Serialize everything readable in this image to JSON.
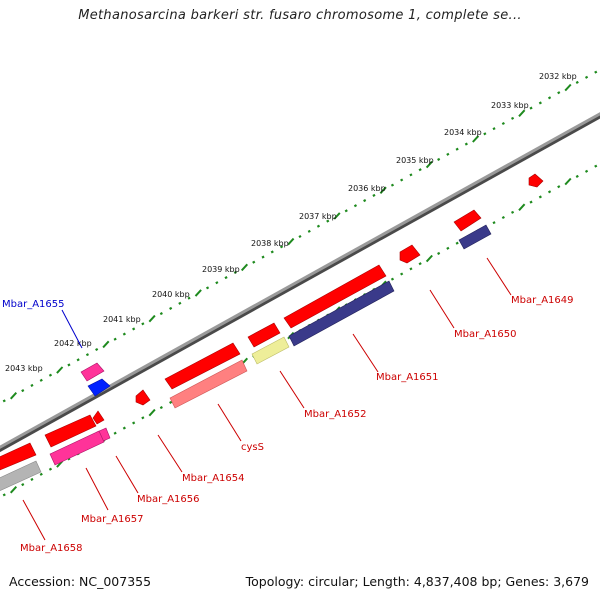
{
  "title": "Methanosarcina barkeri str. fusaro chromosome 1, complete se...",
  "footer": {
    "accession": "Accession: NC_007355",
    "topology": "Topology: circular; Length: 4,837,408 bp; Genes: 3,679"
  },
  "colors": {
    "backbone": "#7a7a7a",
    "tick_dots": "#1e8a1e",
    "label_red": "#cc0000",
    "label_blue": "#0000cc",
    "gene_red": "#ff0000",
    "gene_pink": "#ff3399",
    "gene_navy": "#3a3a8a",
    "gene_salmon": "#ff8080",
    "gene_yellow": "#eeee99",
    "gene_gray": "#b4b4b4",
    "gene_blue": "#0022ff"
  },
  "ruler": [
    {
      "label": "2032 kbp"
    },
    {
      "label": "2033 kbp"
    },
    {
      "label": "2034 kbp"
    },
    {
      "label": "2035 kbp"
    },
    {
      "label": "2036 kbp"
    },
    {
      "label": "2037 kbp"
    },
    {
      "label": "2038 kbp"
    },
    {
      "label": "2039 kbp"
    },
    {
      "label": "2040 kbp"
    },
    {
      "label": "2041 kbp"
    },
    {
      "label": "2042 kbp"
    },
    {
      "label": "2043 kbp"
    }
  ],
  "genes": [
    {
      "name": "Mbar_A1649",
      "color": "red"
    },
    {
      "name": "Mbar_A1650",
      "color": "red"
    },
    {
      "name": "Mbar_A1651",
      "color": "red"
    },
    {
      "name": "Mbar_A1652",
      "color": "red"
    },
    {
      "name": "cysS",
      "color": "red"
    },
    {
      "name": "Mbar_A1654",
      "color": "red"
    },
    {
      "name": "Mbar_A1655",
      "color": "blue"
    },
    {
      "name": "Mbar_A1656",
      "color": "red"
    },
    {
      "name": "Mbar_A1657",
      "color": "red"
    },
    {
      "name": "Mbar_A1658",
      "color": "red"
    }
  ]
}
